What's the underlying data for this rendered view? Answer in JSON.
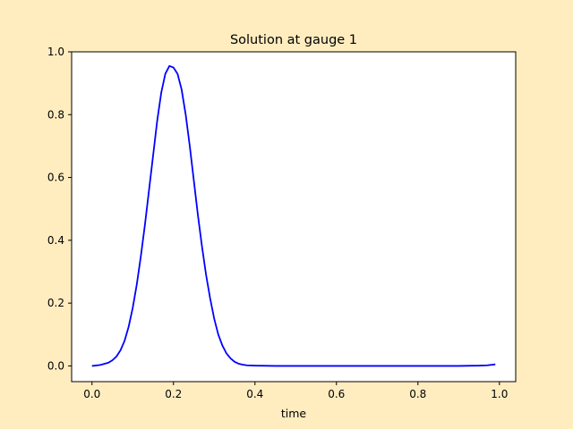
{
  "figure": {
    "background": "#ffedc0"
  },
  "chart_data": {
    "type": "line",
    "title": "Solution at gauge 1",
    "xlabel": "time",
    "ylabel": "",
    "xlim": [
      -0.05,
      1.04
    ],
    "ylim": [
      -0.05,
      1.0
    ],
    "xticks": [
      "0.0",
      "0.2",
      "0.4",
      "0.6",
      "0.8",
      "1.0"
    ],
    "xtick_values": [
      0.0,
      0.2,
      0.4,
      0.6,
      0.8,
      1.0
    ],
    "yticks": [
      "0.0",
      "0.2",
      "0.4",
      "0.6",
      "0.8",
      "1.0"
    ],
    "ytick_values": [
      0.0,
      0.2,
      0.4,
      0.6,
      0.8,
      1.0
    ],
    "grid": false,
    "series": [
      {
        "color": "#0000ff",
        "x": [
          0.0,
          0.02,
          0.04,
          0.05,
          0.06,
          0.07,
          0.08,
          0.09,
          0.1,
          0.11,
          0.12,
          0.13,
          0.14,
          0.15,
          0.16,
          0.17,
          0.18,
          0.19,
          0.2,
          0.21,
          0.22,
          0.23,
          0.24,
          0.25,
          0.26,
          0.27,
          0.28,
          0.29,
          0.3,
          0.31,
          0.32,
          0.33,
          0.34,
          0.35,
          0.36,
          0.37,
          0.38,
          0.4,
          0.45,
          0.5,
          0.6,
          0.7,
          0.8,
          0.9,
          0.95,
          0.97,
          0.99
        ],
        "y": [
          0.0,
          0.003,
          0.01,
          0.018,
          0.03,
          0.05,
          0.08,
          0.125,
          0.185,
          0.26,
          0.35,
          0.45,
          0.56,
          0.67,
          0.78,
          0.87,
          0.93,
          0.955,
          0.95,
          0.93,
          0.88,
          0.8,
          0.7,
          0.59,
          0.48,
          0.38,
          0.29,
          0.215,
          0.15,
          0.1,
          0.065,
          0.04,
          0.024,
          0.013,
          0.007,
          0.004,
          0.002,
          0.001,
          0.0,
          0.0,
          0.0,
          0.0,
          0.0,
          0.0,
          0.001,
          0.002,
          0.005
        ]
      }
    ]
  }
}
